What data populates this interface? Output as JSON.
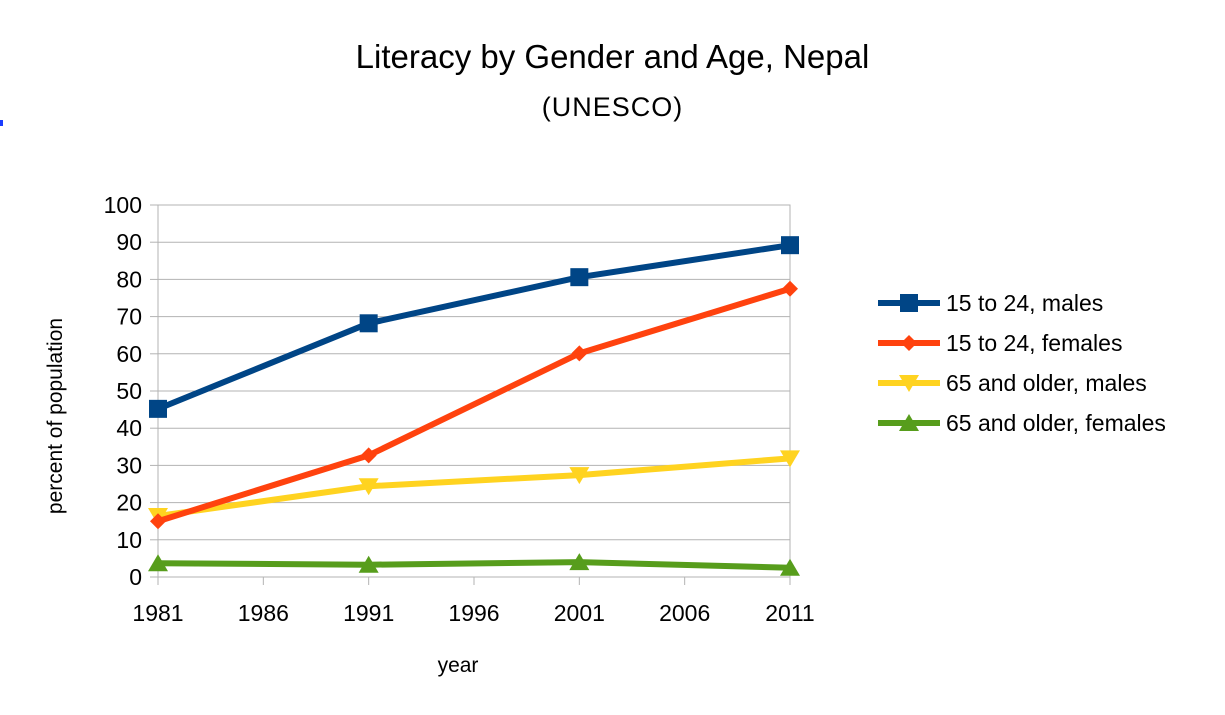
{
  "chart_data": {
    "type": "line",
    "title": "Literacy by Gender and Age, Nepal",
    "subtitle": "(UNESCO)",
    "xlabel": "year",
    "ylabel": "percent of population",
    "xlim": [
      1981,
      2011
    ],
    "ylim": [
      0,
      100
    ],
    "xticks": [
      1981,
      1986,
      1991,
      1996,
      2001,
      2006,
      2011
    ],
    "yticks": [
      0,
      10,
      20,
      30,
      40,
      50,
      60,
      70,
      80,
      90,
      100
    ],
    "grid": "horizontal",
    "legend_position": "right",
    "series": [
      {
        "name": "15 to 24, males",
        "color": "#004586",
        "marker": "square",
        "points": [
          [
            1981,
            45.2
          ],
          [
            1991,
            68.2
          ],
          [
            2001,
            80.6
          ],
          [
            2011,
            89.2
          ]
        ]
      },
      {
        "name": "15 to 24, females",
        "color": "#ff420e",
        "marker": "diamond",
        "points": [
          [
            1981,
            15.0
          ],
          [
            1991,
            32.7
          ],
          [
            2001,
            60.1
          ],
          [
            2011,
            77.5
          ]
        ]
      },
      {
        "name": "65 and older, males",
        "color": "#ffd320",
        "marker": "triangle-down",
        "points": [
          [
            1981,
            16.4
          ],
          [
            1991,
            24.4
          ],
          [
            2001,
            27.4
          ],
          [
            2011,
            31.9
          ]
        ]
      },
      {
        "name": "65 and older, females",
        "color": "#579d1c",
        "marker": "triangle-up",
        "points": [
          [
            1981,
            3.7
          ],
          [
            1991,
            3.3
          ],
          [
            2001,
            4.0
          ],
          [
            2011,
            2.5
          ]
        ]
      }
    ]
  }
}
